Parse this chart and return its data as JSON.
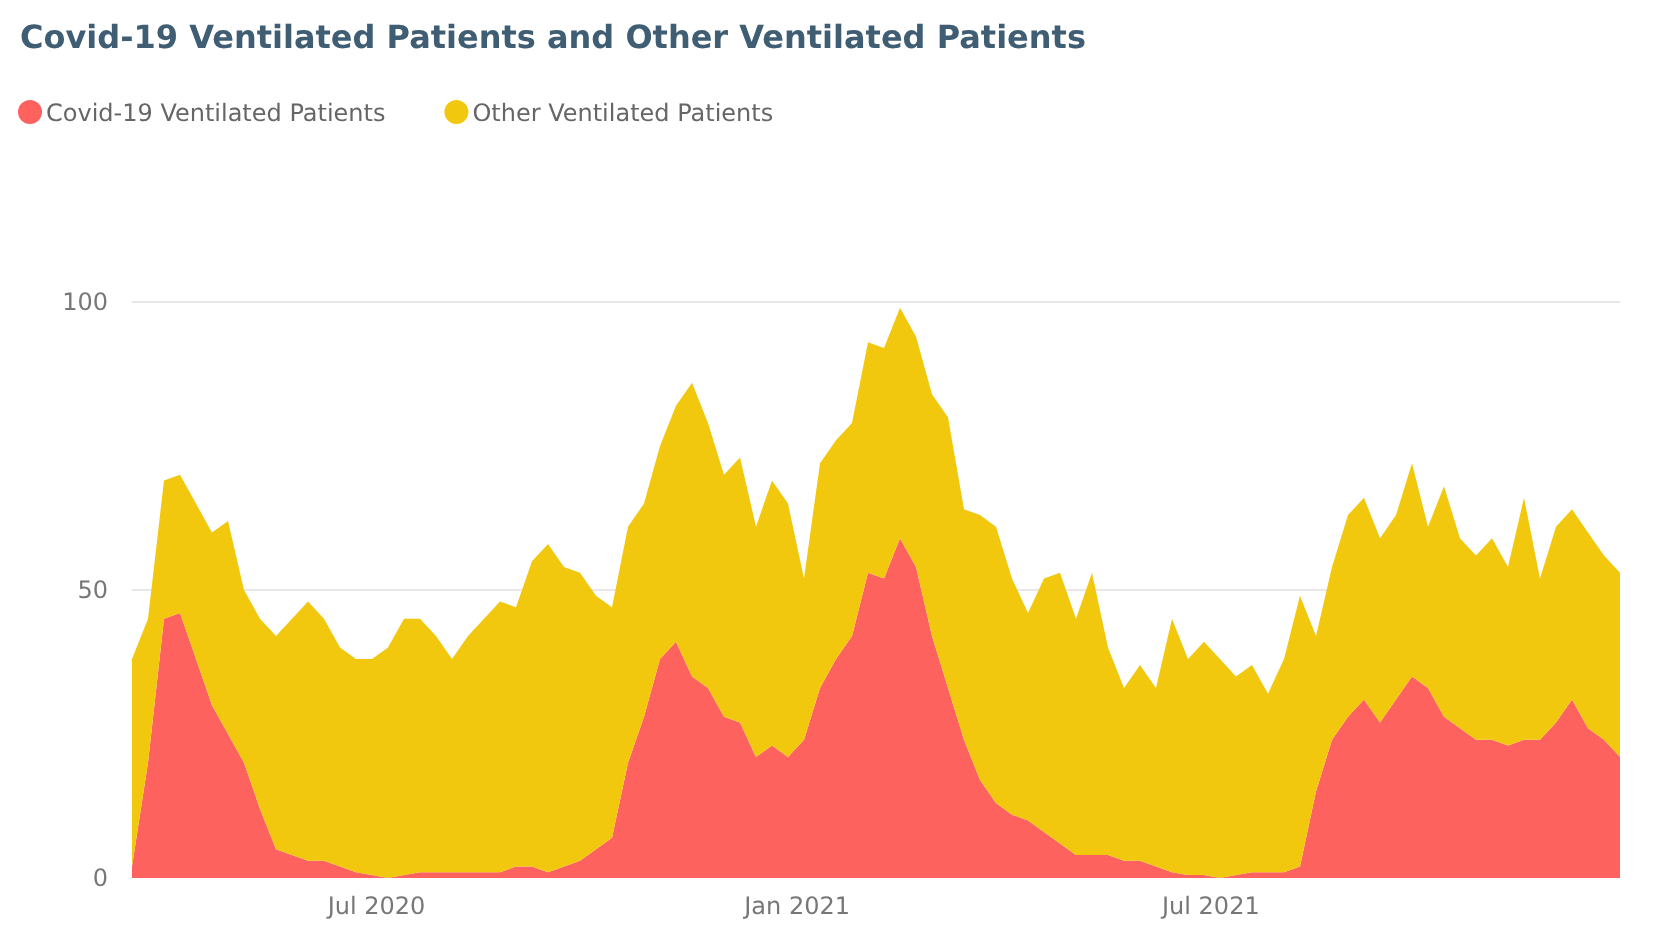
{
  "chart_data": {
    "type": "area",
    "title": "Covid-19 Ventilated Patients and Other Ventilated Patients",
    "stacked": true,
    "legend": "top left",
    "grid": "y",
    "x": [
      "2020-03-16",
      "2020-03-23",
      "2020-03-30",
      "2020-04-06",
      "2020-04-13",
      "2020-04-20",
      "2020-04-27",
      "2020-05-04",
      "2020-05-11",
      "2020-05-18",
      "2020-05-25",
      "2020-06-01",
      "2020-06-08",
      "2020-06-15",
      "2020-06-22",
      "2020-06-29",
      "2020-07-06",
      "2020-07-13",
      "2020-07-20",
      "2020-07-27",
      "2020-08-03",
      "2020-08-10",
      "2020-08-17",
      "2020-08-24",
      "2020-08-31",
      "2020-09-07",
      "2020-09-14",
      "2020-09-21",
      "2020-09-28",
      "2020-10-05",
      "2020-10-12",
      "2020-10-19",
      "2020-10-26",
      "2020-11-02",
      "2020-11-09",
      "2020-11-16",
      "2020-11-23",
      "2020-11-30",
      "2020-12-07",
      "2020-12-14",
      "2020-12-21",
      "2020-12-28",
      "2021-01-04",
      "2021-01-11",
      "2021-01-18",
      "2021-01-25",
      "2021-02-01",
      "2021-02-08",
      "2021-02-15",
      "2021-02-22",
      "2021-03-01",
      "2021-03-08",
      "2021-03-15",
      "2021-03-22",
      "2021-03-29",
      "2021-04-05",
      "2021-04-12",
      "2021-04-19",
      "2021-04-26",
      "2021-05-03",
      "2021-05-10",
      "2021-05-17",
      "2021-05-24",
      "2021-05-31",
      "2021-06-07",
      "2021-06-14",
      "2021-06-21",
      "2021-06-28",
      "2021-07-05",
      "2021-07-12",
      "2021-07-19",
      "2021-07-26",
      "2021-08-02",
      "2021-08-09",
      "2021-08-16",
      "2021-08-23",
      "2021-08-30",
      "2021-09-06",
      "2021-09-13",
      "2021-09-20",
      "2021-09-27",
      "2021-10-04",
      "2021-10-11",
      "2021-10-18",
      "2021-10-25",
      "2021-11-01",
      "2021-11-08",
      "2021-11-15",
      "2021-11-22",
      "2021-11-29",
      "2021-12-06",
      "2021-12-13",
      "2021-12-20",
      "2021-12-27"
    ],
    "series": [
      {
        "name": "Covid-19 Ventilated Patients",
        "color": "#fd625e",
        "values": [
          2,
          20,
          45,
          46,
          38,
          30,
          25,
          20,
          12,
          5,
          4,
          3,
          3,
          2,
          1,
          0.5,
          0,
          0.5,
          1,
          1,
          1,
          1,
          1,
          1,
          2,
          2,
          1,
          2,
          3,
          5,
          7,
          20,
          28,
          38,
          41,
          35,
          33,
          28,
          27,
          21,
          23,
          21,
          24,
          33,
          38,
          42,
          53,
          52,
          59,
          54,
          42,
          33,
          24,
          17,
          13,
          11,
          10,
          8,
          6,
          4,
          4,
          4,
          3,
          3,
          2,
          1,
          0.5,
          0.5,
          0,
          0.5,
          1,
          1,
          1,
          2,
          15,
          24,
          28,
          31,
          27,
          31,
          35,
          33,
          28,
          26,
          24,
          24,
          23,
          24,
          24,
          27,
          31,
          26,
          24,
          21
        ]
      },
      {
        "name": "Other Ventilated Patients",
        "color": "#f2c80f",
        "values": [
          36,
          25,
          24,
          24,
          27,
          30,
          37,
          30,
          33,
          37,
          41,
          45,
          42,
          38,
          37,
          37.5,
          40,
          44.5,
          44,
          41,
          37,
          41,
          44,
          47,
          45,
          53,
          57,
          52,
          50,
          44,
          40,
          41,
          37,
          37,
          41,
          51,
          46,
          42,
          46,
          40,
          46,
          44,
          28,
          39,
          38,
          37,
          40,
          40,
          40,
          40,
          42,
          47,
          40,
          46,
          48,
          41,
          36,
          44,
          47,
          41,
          49,
          36,
          30,
          34,
          31,
          44,
          37.5,
          40.5,
          38,
          34.5,
          36,
          31,
          37,
          47,
          27,
          30,
          35,
          35,
          32,
          32,
          37,
          28,
          40,
          33,
          32,
          35,
          31,
          42,
          28,
          34,
          33,
          34,
          32,
          32
        ]
      }
    ],
    "xlim": [
      "2020-03-16",
      "2021-12-27"
    ],
    "xticks": [
      {
        "value": "2020-07-01",
        "label": "Jul 2020"
      },
      {
        "value": "2021-01-01",
        "label": "Jan 2021"
      },
      {
        "value": "2021-07-01",
        "label": "Jul 2021"
      }
    ],
    "ylim": [
      0,
      100
    ],
    "yticks": [
      0,
      50,
      100
    ]
  }
}
